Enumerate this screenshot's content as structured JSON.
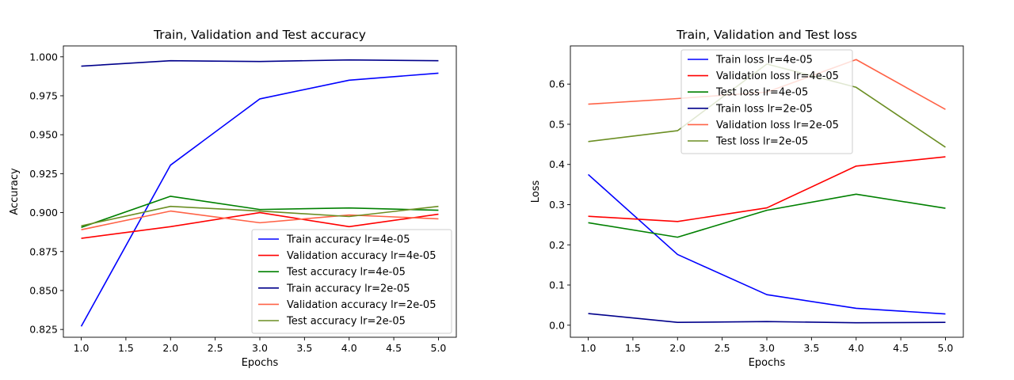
{
  "chart_data": [
    {
      "type": "line",
      "title": "Train, Validation and Test accuracy",
      "xlabel": "Epochs",
      "ylabel": "Accuracy",
      "xlim": [
        0.8,
        5.2
      ],
      "ylim": [
        0.82,
        1.007
      ],
      "xticks": [
        1.0,
        1.5,
        2.0,
        2.5,
        3.0,
        3.5,
        4.0,
        4.5,
        5.0
      ],
      "xtick_labels": [
        "1.0",
        "1.5",
        "2.0",
        "2.5",
        "3.0",
        "3.5",
        "4.0",
        "4.5",
        "5.0"
      ],
      "yticks": [
        0.825,
        0.85,
        0.875,
        0.9,
        0.925,
        0.95,
        0.975,
        1.0
      ],
      "ytick_labels": [
        "0.825",
        "0.850",
        "0.875",
        "0.900",
        "0.925",
        "0.950",
        "0.975",
        "1.000"
      ],
      "grid": false,
      "legend_position": "lower-right",
      "x": [
        1,
        2,
        3,
        4,
        5
      ],
      "series": [
        {
          "name": "Train accuracy lr=4e-05",
          "color": "#0000ff",
          "values": [
            0.827,
            0.9305,
            0.973,
            0.985,
            0.9895
          ]
        },
        {
          "name": "Validation accuracy lr=4e-05",
          "color": "#ff0000",
          "values": [
            0.8835,
            0.891,
            0.9,
            0.891,
            0.899
          ]
        },
        {
          "name": "Test accuracy lr=4e-05",
          "color": "#008000",
          "values": [
            0.8905,
            0.9105,
            0.902,
            0.903,
            0.9015
          ]
        },
        {
          "name": "Train accuracy lr=2e-05",
          "color": "#00008b",
          "values": [
            0.994,
            0.9975,
            0.997,
            0.998,
            0.9975
          ]
        },
        {
          "name": "Validation accuracy lr=2e-05",
          "color": "#ff6347",
          "values": [
            0.889,
            0.901,
            0.8935,
            0.8985,
            0.896
          ]
        },
        {
          "name": "Test accuracy lr=2e-05",
          "color": "#6b8e23",
          "values": [
            0.8915,
            0.904,
            0.901,
            0.8975,
            0.904
          ]
        }
      ]
    },
    {
      "type": "line",
      "title": "Train, Validation and Test loss",
      "xlabel": "Epochs",
      "ylabel": "Loss",
      "xlim": [
        0.8,
        5.2
      ],
      "ylim": [
        -0.03,
        0.695
      ],
      "xticks": [
        1.0,
        1.5,
        2.0,
        2.5,
        3.0,
        3.5,
        4.0,
        4.5,
        5.0
      ],
      "xtick_labels": [
        "1.0",
        "1.5",
        "2.0",
        "2.5",
        "3.0",
        "3.5",
        "4.0",
        "4.5",
        "5.0"
      ],
      "yticks": [
        0.0,
        0.1,
        0.2,
        0.3,
        0.4,
        0.5,
        0.6
      ],
      "ytick_labels": [
        "0.0",
        "0.1",
        "0.2",
        "0.3",
        "0.4",
        "0.5",
        "0.6"
      ],
      "grid": false,
      "legend_position": "upper-center",
      "x": [
        1,
        2,
        3,
        4,
        5
      ],
      "series": [
        {
          "name": "Train loss lr=4e-05",
          "color": "#0000ff",
          "values": [
            0.375,
            0.176,
            0.076,
            0.042,
            0.028
          ]
        },
        {
          "name": "Validation loss lr=4e-05",
          "color": "#ff0000",
          "values": [
            0.271,
            0.258,
            0.292,
            0.396,
            0.419
          ]
        },
        {
          "name": "Test loss lr=4e-05",
          "color": "#008000",
          "values": [
            0.255,
            0.219,
            0.286,
            0.326,
            0.291
          ]
        },
        {
          "name": "Train loss lr=2e-05",
          "color": "#00008b",
          "values": [
            0.029,
            0.007,
            0.009,
            0.006,
            0.007
          ]
        },
        {
          "name": "Validation loss lr=2e-05",
          "color": "#ff6347",
          "values": [
            0.55,
            0.564,
            0.58,
            0.661,
            0.537
          ]
        },
        {
          "name": "Test loss lr=2e-05",
          "color": "#6b8e23",
          "values": [
            0.457,
            0.484,
            0.65,
            0.592,
            0.443
          ]
        }
      ]
    }
  ]
}
